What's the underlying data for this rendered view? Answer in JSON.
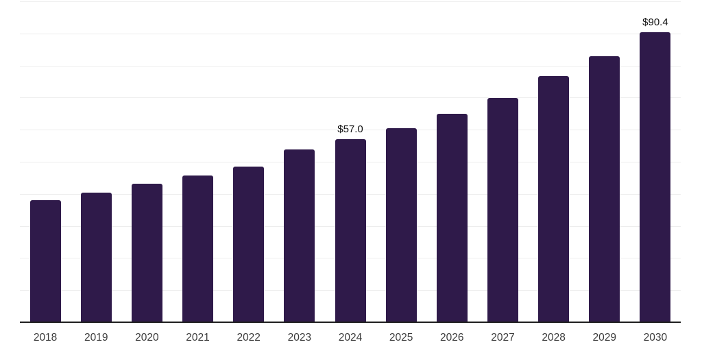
{
  "chart_data": {
    "type": "bar",
    "categories": [
      "2018",
      "2019",
      "2020",
      "2021",
      "2022",
      "2023",
      "2024",
      "2025",
      "2026",
      "2027",
      "2028",
      "2029",
      "2030"
    ],
    "values": [
      38.0,
      40.4,
      43.2,
      45.7,
      48.6,
      53.8,
      57.0,
      60.4,
      64.9,
      69.9,
      76.7,
      83.0,
      90.4
    ],
    "value_labels": {
      "2024": "$57.0",
      "2030": "$90.4"
    },
    "title": "",
    "xlabel": "",
    "ylabel": "",
    "ylim": [
      0,
      100
    ],
    "gridline_step": 10,
    "grid": true,
    "legend": false,
    "y_axis_tick_labels_visible": false,
    "colors": {
      "bar": "#2f1a4a",
      "gridline": "#ededed",
      "axis_line": "#1f1f1f",
      "tick_label": "#3b3b3b",
      "value_label": "#111111",
      "background": "#ffffff"
    }
  }
}
